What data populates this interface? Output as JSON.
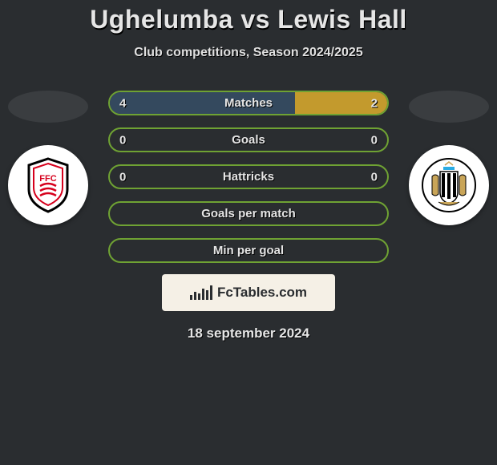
{
  "header": {
    "title": "Ughelumba vs Lewis Hall",
    "subtitle": "Club competitions, Season 2024/2025"
  },
  "colors": {
    "border_green": "#6fa233",
    "fill_left": "#34495e",
    "fill_right": "#c39a2d",
    "badge_left_bg": "#ffffff",
    "badge_right_bg": "#ffffff"
  },
  "rows": [
    {
      "label": "Matches",
      "left": "4",
      "right": "2",
      "left_pct": 66.7,
      "right_pct": 33.3
    },
    {
      "label": "Goals",
      "left": "0",
      "right": "0",
      "left_pct": 0,
      "right_pct": 0
    },
    {
      "label": "Hattricks",
      "left": "0",
      "right": "0",
      "left_pct": 0,
      "right_pct": 0
    },
    {
      "label": "Goals per match",
      "left": "",
      "right": "",
      "left_pct": 0,
      "right_pct": 0
    },
    {
      "label": "Min per goal",
      "left": "",
      "right": "",
      "left_pct": 0,
      "right_pct": 0
    }
  ],
  "footer": {
    "brand": "FcTables.com",
    "date": "18 september 2024"
  }
}
